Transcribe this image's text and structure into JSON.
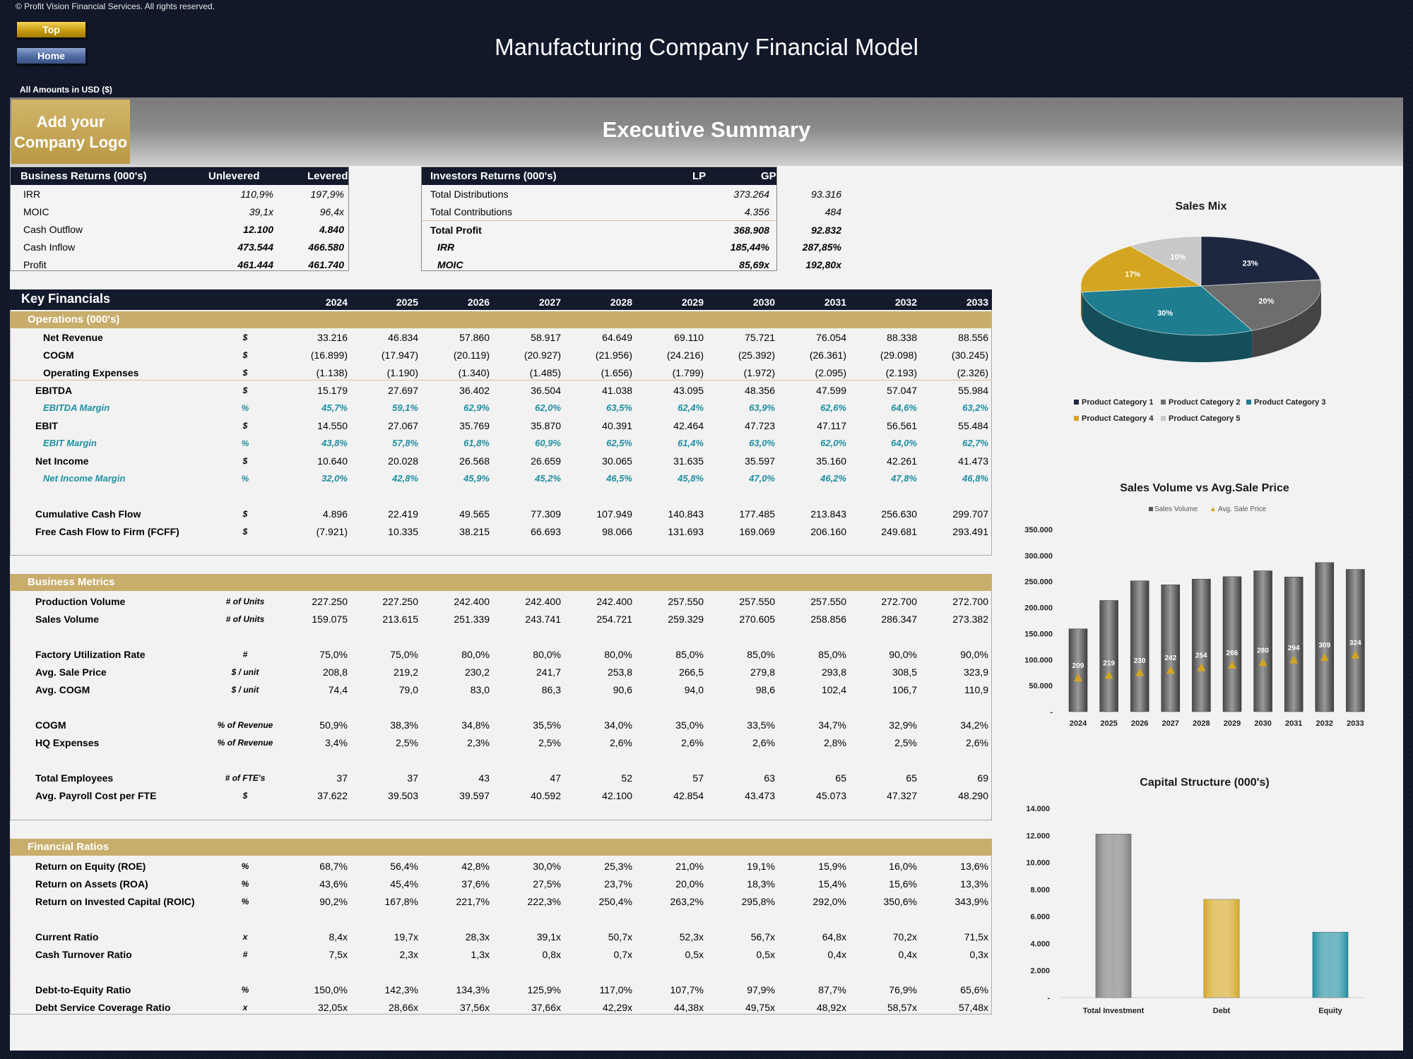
{
  "copyright": "© Profit Vision Financial Services. All rights reserved.",
  "nav": {
    "top_label": "Top",
    "home_label": "Home"
  },
  "app_title": "Manufacturing Company Financial Model",
  "currency_note": "All Amounts in  USD ($)",
  "logo_text": "Add your Company Logo",
  "section_title": "Executive Summary",
  "business_returns": {
    "title": "Business Returns (000's)",
    "col1": "Unlevered",
    "col2": "Levered",
    "rows": [
      {
        "label": "IRR",
        "a": "110,9%",
        "b": "197,9%"
      },
      {
        "label": "MOIC",
        "a": "39,1x",
        "b": "96,4x"
      },
      {
        "label": "Cash Outflow",
        "a": "12.100",
        "b": "4.840"
      },
      {
        "label": "Cash Inflow",
        "a": "473.544",
        "b": "466.580"
      },
      {
        "label": "Profit",
        "a": "461.444",
        "b": "461.740"
      }
    ]
  },
  "investor_returns": {
    "title": "Investors Returns (000's)",
    "col1": "LP",
    "col2": "GP",
    "rows": [
      {
        "label": "Total Distributions",
        "a": "373.264",
        "b": "93.316"
      },
      {
        "label": "Total Contributions",
        "a": "4.356",
        "b": "484"
      },
      {
        "label": "Total Profit",
        "a": "368.908",
        "b": "92.832"
      },
      {
        "label": "IRR",
        "a": "185,44%",
        "b": "287,85%"
      },
      {
        "label": "MOIC",
        "a": "85,69x",
        "b": "192,80x"
      }
    ]
  },
  "key_financials": {
    "title": "Key Financials",
    "years": [
      "2024",
      "2025",
      "2026",
      "2027",
      "2028",
      "2029",
      "2030",
      "2031",
      "2032",
      "2033"
    ],
    "operations_title": "Operations (000's)",
    "operations": [
      {
        "label": "Net Revenue",
        "unit": "$",
        "indent": 2,
        "values": [
          "33.216",
          "46.834",
          "57.860",
          "58.917",
          "64.649",
          "69.110",
          "75.721",
          "76.054",
          "88.338",
          "88.556"
        ]
      },
      {
        "label": "COGM",
        "unit": "$",
        "indent": 2,
        "values": [
          "(16.899)",
          "(17.947)",
          "(20.119)",
          "(20.927)",
          "(21.956)",
          "(24.216)",
          "(25.392)",
          "(26.361)",
          "(29.098)",
          "(30.245)"
        ]
      },
      {
        "label": "Operating Expenses",
        "unit": "$",
        "indent": 2,
        "values": [
          "(1.138)",
          "(1.190)",
          "(1.340)",
          "(1.485)",
          "(1.656)",
          "(1.799)",
          "(1.972)",
          "(2.095)",
          "(2.193)",
          "(2.326)"
        ]
      },
      {
        "label": "EBITDA",
        "unit": "$",
        "indent": 1,
        "values": [
          "15.179",
          "27.697",
          "36.402",
          "36.504",
          "41.038",
          "43.095",
          "48.356",
          "47.599",
          "57.047",
          "55.984"
        ]
      },
      {
        "label": "EBITDA Margin",
        "unit": "%",
        "indent": 2,
        "margin": true,
        "values": [
          "45,7%",
          "59,1%",
          "62,9%",
          "62,0%",
          "63,5%",
          "62,4%",
          "63,9%",
          "62,6%",
          "64,6%",
          "63,2%"
        ]
      },
      {
        "label": "EBIT",
        "unit": "$",
        "indent": 1,
        "values": [
          "14.550",
          "27.067",
          "35.769",
          "35.870",
          "40.391",
          "42.464",
          "47.723",
          "47.117",
          "56.561",
          "55.484"
        ]
      },
      {
        "label": "EBIT Margin",
        "unit": "%",
        "indent": 2,
        "margin": true,
        "values": [
          "43,8%",
          "57,8%",
          "61,8%",
          "60,9%",
          "62,5%",
          "61,4%",
          "63,0%",
          "62,0%",
          "64,0%",
          "62,7%"
        ]
      },
      {
        "label": "Net Income",
        "unit": "$",
        "indent": 1,
        "values": [
          "10.640",
          "20.028",
          "26.568",
          "26.659",
          "30.065",
          "31.635",
          "35.597",
          "35.160",
          "42.261",
          "41.473"
        ]
      },
      {
        "label": "Net Income Margin",
        "unit": "%",
        "indent": 2,
        "margin": true,
        "values": [
          "32,0%",
          "42,8%",
          "45,9%",
          "45,2%",
          "46,5%",
          "45,8%",
          "47,0%",
          "46,2%",
          "47,8%",
          "46,8%"
        ]
      },
      {
        "label": "Cumulative Cash Flow",
        "unit": "$",
        "indent": 1,
        "values": [
          "4.896",
          "22.419",
          "49.565",
          "77.309",
          "107.949",
          "140.843",
          "177.485",
          "213.843",
          "256.630",
          "299.707"
        ]
      },
      {
        "label": "Free Cash Flow to Firm (FCFF)",
        "unit": "$",
        "indent": 1,
        "values": [
          "(7.921)",
          "10.335",
          "38.215",
          "66.693",
          "98.066",
          "131.693",
          "169.069",
          "206.160",
          "249.681",
          "293.491"
        ]
      }
    ],
    "metrics_title": "Business Metrics",
    "metrics": [
      {
        "label": "Production Volume",
        "unit": "# of Units",
        "values": [
          "227.250",
          "227.250",
          "242.400",
          "242.400",
          "242.400",
          "257.550",
          "257.550",
          "257.550",
          "272.700",
          "272.700"
        ]
      },
      {
        "label": "Sales Volume",
        "unit": "# of Units",
        "values": [
          "159.075",
          "213.615",
          "251.339",
          "243.741",
          "254.721",
          "259.329",
          "270.605",
          "258.856",
          "286.347",
          "273.382"
        ]
      },
      {
        "label": "Factory Utilization Rate",
        "unit": "#",
        "values": [
          "75,0%",
          "75,0%",
          "80,0%",
          "80,0%",
          "80,0%",
          "85,0%",
          "85,0%",
          "85,0%",
          "90,0%",
          "90,0%"
        ]
      },
      {
        "label": "Avg. Sale Price",
        "unit": "$ / unit",
        "values": [
          "208,8",
          "219,2",
          "230,2",
          "241,7",
          "253,8",
          "266,5",
          "279,8",
          "293,8",
          "308,5",
          "323,9"
        ]
      },
      {
        "label": "Avg. COGM",
        "unit": "$ / unit",
        "values": [
          "74,4",
          "79,0",
          "83,0",
          "86,3",
          "90,6",
          "94,0",
          "98,6",
          "102,4",
          "106,7",
          "110,9"
        ]
      },
      {
        "label": "COGM",
        "unit": "% of Revenue",
        "values": [
          "50,9%",
          "38,3%",
          "34,8%",
          "35,5%",
          "34,0%",
          "35,0%",
          "33,5%",
          "34,7%",
          "32,9%",
          "34,2%"
        ]
      },
      {
        "label": "HQ Expenses",
        "unit": "% of Revenue",
        "values": [
          "3,4%",
          "2,5%",
          "2,3%",
          "2,5%",
          "2,6%",
          "2,6%",
          "2,6%",
          "2,8%",
          "2,5%",
          "2,6%"
        ]
      },
      {
        "label": "Total Employees",
        "unit": "# of FTE's",
        "values": [
          "37",
          "37",
          "43",
          "47",
          "52",
          "57",
          "63",
          "65",
          "65",
          "69"
        ]
      },
      {
        "label": "Avg. Payroll Cost per FTE",
        "unit": "$",
        "values": [
          "37.622",
          "39.503",
          "39.597",
          "40.592",
          "42.100",
          "42.854",
          "43.473",
          "45.073",
          "47.327",
          "48.290"
        ]
      }
    ],
    "ratios_title": "Financial Ratios",
    "ratios": [
      {
        "label": "Return on Equity (ROE)",
        "unit": "%",
        "values": [
          "68,7%",
          "56,4%",
          "42,8%",
          "30,0%",
          "25,3%",
          "21,0%",
          "19,1%",
          "15,9%",
          "16,0%",
          "13,6%"
        ]
      },
      {
        "label": "Return on Assets (ROA)",
        "unit": "%",
        "values": [
          "43,6%",
          "45,4%",
          "37,6%",
          "27,5%",
          "23,7%",
          "20,0%",
          "18,3%",
          "15,4%",
          "15,6%",
          "13,3%"
        ]
      },
      {
        "label": "Return on Invested Capital (ROIC)",
        "unit": "%",
        "values": [
          "90,2%",
          "167,8%",
          "221,7%",
          "222,3%",
          "250,4%",
          "263,2%",
          "295,8%",
          "292,0%",
          "350,6%",
          "343,9%"
        ]
      },
      {
        "label": "Current Ratio",
        "unit": "x",
        "values": [
          "8,4x",
          "19,7x",
          "28,3x",
          "39,1x",
          "50,7x",
          "52,3x",
          "56,7x",
          "64,8x",
          "70,2x",
          "71,5x"
        ]
      },
      {
        "label": "Cash Turnover Ratio",
        "unit": "#",
        "values": [
          "7,5x",
          "2,3x",
          "1,3x",
          "0,8x",
          "0,7x",
          "0,5x",
          "0,5x",
          "0,4x",
          "0,4x",
          "0,3x"
        ]
      },
      {
        "label": "Debt-to-Equity Ratio",
        "unit": "%",
        "values": [
          "150,0%",
          "142,3%",
          "134,3%",
          "125,9%",
          "117,0%",
          "107,7%",
          "97,9%",
          "87,7%",
          "76,9%",
          "65,6%"
        ]
      },
      {
        "label": "Debt Service Coverage Ratio",
        "unit": "x",
        "values": [
          "32,05x",
          "28,66x",
          "37,56x",
          "37,66x",
          "42,29x",
          "44,38x",
          "49,75x",
          "48,92x",
          "58,57x",
          "57,48x"
        ]
      }
    ]
  },
  "chart_data": [
    {
      "type": "pie",
      "title": "Sales Mix",
      "categories": [
        "Product Category 1",
        "Product Category 2",
        "Product Category 3",
        "Product Category 4",
        "Product Category 5"
      ],
      "values": [
        23,
        20,
        30,
        17,
        10
      ],
      "labels": [
        "23%",
        "20%",
        "30%",
        "17%",
        "10%"
      ],
      "colors": [
        "#1e2740",
        "#6e6e6e",
        "#1e7d8f",
        "#d4a520",
        "#c8c8c8"
      ],
      "legend": "bottom"
    },
    {
      "type": "bar",
      "title": "Sales Volume vs Avg.Sale Price",
      "categories": [
        "2024",
        "2025",
        "2026",
        "2027",
        "2028",
        "2029",
        "2030",
        "2031",
        "2032",
        "2033"
      ],
      "series": [
        {
          "name": "Sales Volume",
          "type": "bar",
          "values": [
            159075,
            213615,
            251339,
            243741,
            254721,
            259329,
            270605,
            258856,
            286347,
            273382
          ]
        },
        {
          "name": "Avg. Sale Price",
          "type": "scatter",
          "values": [
            209,
            219,
            230,
            242,
            254,
            266,
            280,
            294,
            309,
            324
          ]
        }
      ],
      "yticks": [
        "350.000",
        "300.000",
        "250.000",
        "200.000",
        "150.000",
        "100.000",
        "50.000",
        "-"
      ],
      "ylim": [
        0,
        350000
      ],
      "legend": "top"
    },
    {
      "type": "bar",
      "title": "Capital Structure (000's)",
      "categories": [
        "Total Investment",
        "Debt",
        "Equity"
      ],
      "values": [
        12100,
        7260,
        4840
      ],
      "colors": [
        "#7a7a7a",
        "#d4a520",
        "#1e8ea0"
      ],
      "yticks": [
        "14.000",
        "12.000",
        "10.000",
        "8.000",
        "6.000",
        "4.000",
        "2.000",
        "-"
      ],
      "ylim": [
        0,
        14000
      ]
    }
  ]
}
